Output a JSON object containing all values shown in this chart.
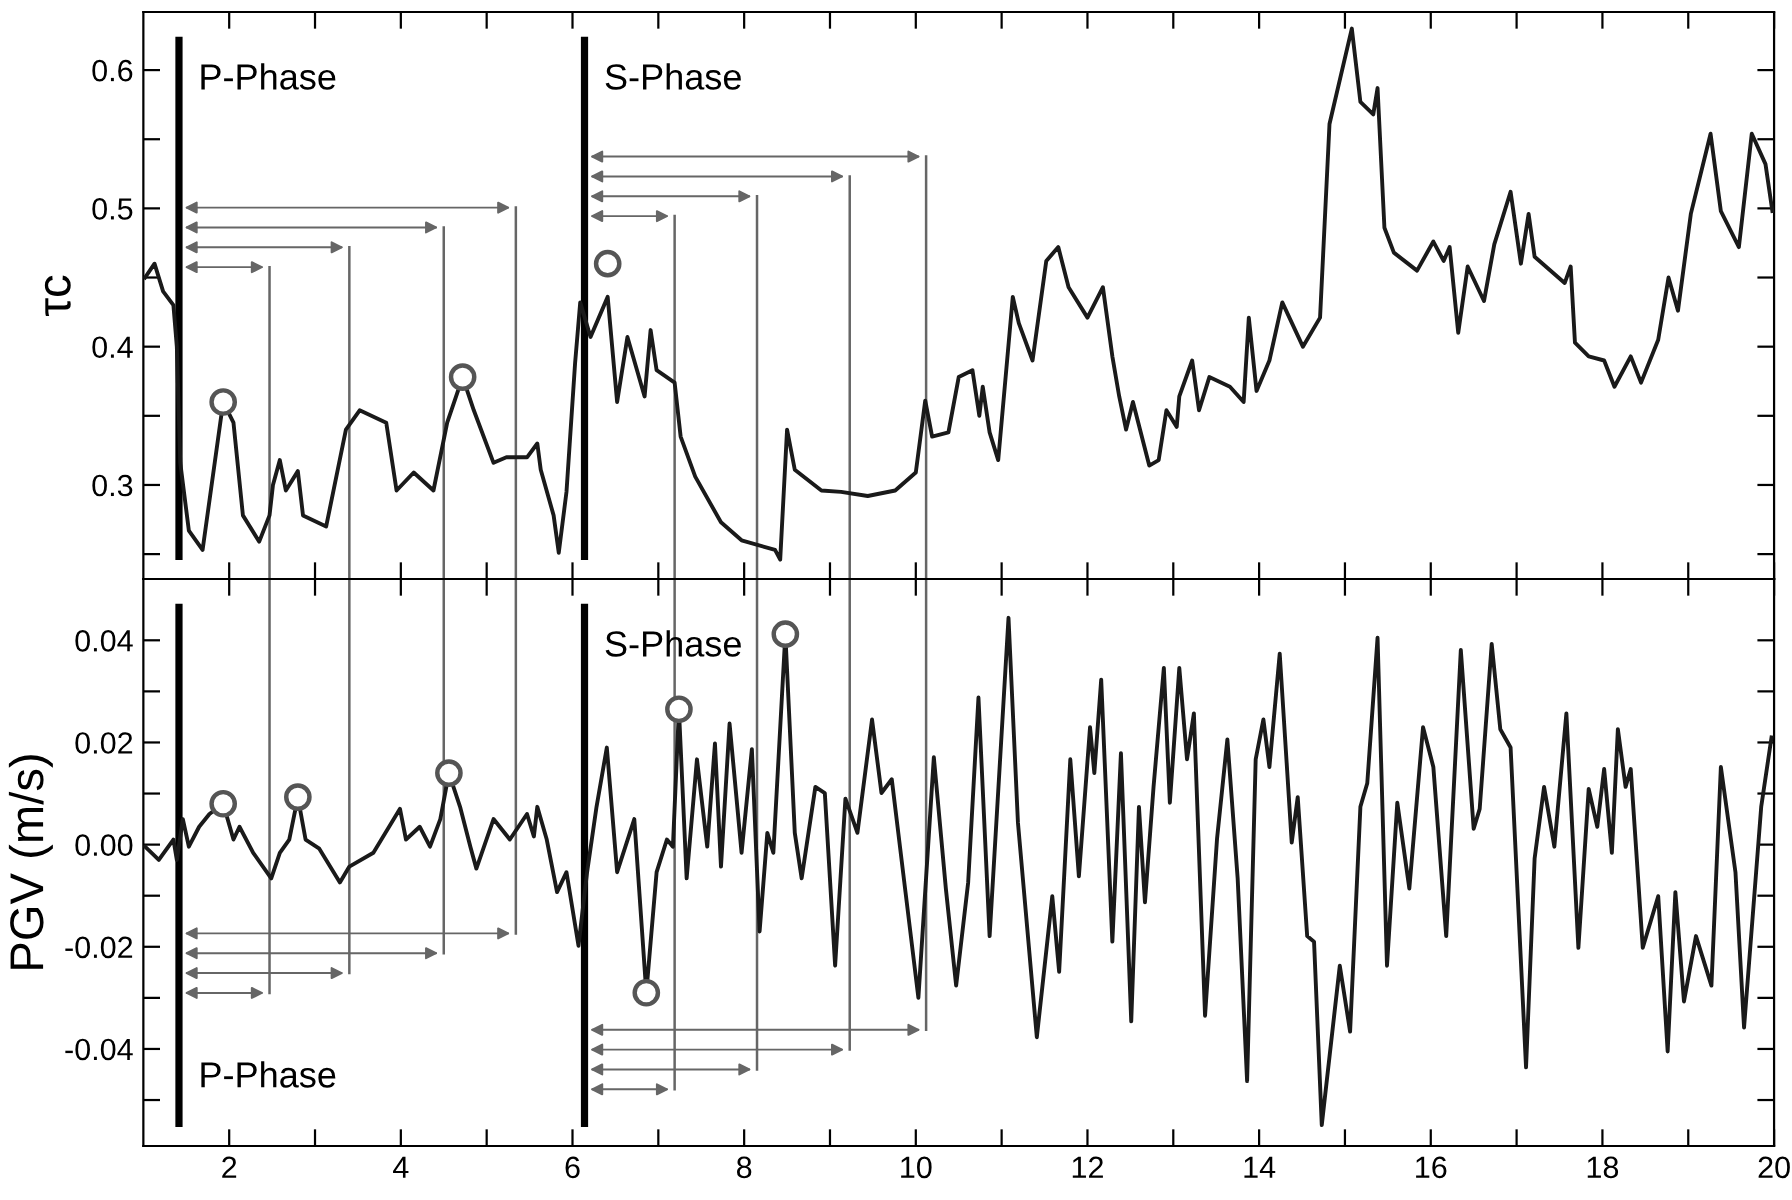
{
  "chart_data": [
    {
      "type": "line",
      "ylabel": "τc",
      "tick_labels": "y",
      "xlim": [
        1.0,
        20
      ],
      "ylim": [
        0.232,
        0.642
      ],
      "xticks": [
        {
          "value": 2,
          "label": null
        },
        {
          "value": 3,
          "label": null
        },
        {
          "value": 4,
          "label": null
        },
        {
          "value": 5,
          "label": null
        },
        {
          "value": 6,
          "label": null
        },
        {
          "value": 7,
          "label": null
        },
        {
          "value": 8,
          "label": null
        },
        {
          "value": 9,
          "label": null
        },
        {
          "value": 10,
          "label": null
        },
        {
          "value": 11,
          "label": null
        },
        {
          "value": 12,
          "label": null
        },
        {
          "value": 13,
          "label": null
        },
        {
          "value": 14,
          "label": null
        },
        {
          "value": 15,
          "label": null
        },
        {
          "value": 16,
          "label": null
        },
        {
          "value": 17,
          "label": null
        },
        {
          "value": 18,
          "label": null
        },
        {
          "value": 19,
          "label": null
        },
        {
          "value": 20,
          "label": null
        }
      ],
      "yticks": [
        {
          "value": 0.25,
          "label": null
        },
        0.3,
        {
          "value": 0.35,
          "label": null
        },
        0.4,
        {
          "value": 0.45,
          "label": null
        },
        0.5,
        {
          "value": 0.55,
          "label": null
        },
        0.6
      ],
      "ref_lines": [
        {
          "axis": "x",
          "value": 1.415,
          "color": "#000000",
          "label": "P-Phase"
        },
        {
          "axis": "x",
          "value": 2.47,
          "color": "#666666"
        },
        {
          "axis": "x",
          "value": 3.4,
          "color": "#666666"
        },
        {
          "axis": "x",
          "value": 4.5,
          "color": "#666666"
        },
        {
          "axis": "x",
          "value": 5.34,
          "color": "#666666"
        },
        {
          "axis": "x",
          "value": 6.14,
          "color": "#000000",
          "label": "S-Phase"
        },
        {
          "axis": "x",
          "value": 7.19,
          "color": "#666666"
        },
        {
          "axis": "x",
          "value": 8.15,
          "color": "#666666"
        },
        {
          "axis": "x",
          "value": 9.23,
          "color": "#666666"
        },
        {
          "axis": "x",
          "value": 10.12,
          "color": "#666666"
        }
      ],
      "series": [
        {
          "color": "#1a1a1a",
          "x": [
            1.02,
            1.13,
            1.23,
            1.35,
            1.39,
            1.43,
            1.53,
            1.69,
            1.93,
            2.05,
            2.16,
            2.35,
            2.47,
            2.51,
            2.59,
            2.66,
            2.8,
            2.86,
            3.13,
            3.36,
            3.52,
            3.83,
            3.95,
            4.15,
            4.38,
            4.54,
            4.72,
            4.85,
            5.08,
            5.23,
            5.47,
            5.59,
            5.63,
            5.78,
            5.84,
            5.93,
            6.03,
            6.09,
            6.21,
            6.41,
            6.52,
            6.64,
            6.84,
            6.91,
            6.98,
            7.19,
            7.26,
            7.43,
            7.73,
            7.97,
            8.36,
            8.42,
            8.5,
            8.59,
            8.9,
            9.13,
            9.44,
            9.76,
            10.0,
            10.11,
            10.19,
            10.38,
            10.5,
            10.66,
            10.74,
            10.78,
            10.86,
            10.96,
            11.13,
            11.2,
            11.36,
            11.52,
            11.66,
            11.78,
            12.0,
            12.18,
            12.29,
            12.37,
            12.45,
            12.53,
            12.72,
            12.83,
            12.92,
            13.04,
            13.07,
            13.22,
            13.3,
            13.42,
            13.66,
            13.82,
            13.88,
            13.97,
            14.12,
            14.27,
            14.51,
            14.71,
            14.82,
            15.08,
            15.18,
            15.33,
            15.38,
            15.46,
            15.57,
            15.84,
            16.03,
            16.15,
            16.22,
            16.32,
            16.43,
            16.62,
            16.74,
            16.93,
            17.05,
            17.14,
            17.21,
            17.56,
            17.63,
            17.68,
            17.84,
            18.02,
            18.14,
            18.33,
            18.45,
            18.65,
            18.77,
            18.88,
            19.03,
            19.26,
            19.38,
            19.59,
            19.74,
            19.9,
            19.98
          ],
          "values": [
            0.45,
            0.46,
            0.44,
            0.43,
            0.4,
            0.316,
            0.267,
            0.253,
            0.36,
            0.345,
            0.278,
            0.259,
            0.278,
            0.3,
            0.318,
            0.296,
            0.31,
            0.278,
            0.27,
            0.34,
            0.354,
            0.345,
            0.296,
            0.309,
            0.296,
            0.345,
            0.378,
            0.354,
            0.316,
            0.32,
            0.32,
            0.33,
            0.311,
            0.278,
            0.251,
            0.295,
            0.388,
            0.432,
            0.407,
            0.436,
            0.36,
            0.407,
            0.364,
            0.412,
            0.383,
            0.374,
            0.335,
            0.306,
            0.273,
            0.26,
            0.253,
            0.246,
            0.34,
            0.311,
            0.296,
            0.295,
            0.292,
            0.296,
            0.309,
            0.361,
            0.335,
            0.338,
            0.378,
            0.383,
            0.35,
            0.371,
            0.338,
            0.318,
            0.436,
            0.417,
            0.39,
            0.462,
            0.472,
            0.443,
            0.421,
            0.443,
            0.393,
            0.364,
            0.34,
            0.36,
            0.314,
            0.318,
            0.354,
            0.342,
            0.364,
            0.39,
            0.354,
            0.378,
            0.371,
            0.36,
            0.421,
            0.368,
            0.39,
            0.432,
            0.4,
            0.421,
            0.561,
            0.63,
            0.577,
            0.568,
            0.587,
            0.486,
            0.468,
            0.455,
            0.476,
            0.462,
            0.472,
            0.41,
            0.458,
            0.433,
            0.474,
            0.512,
            0.46,
            0.496,
            0.465,
            0.446,
            0.458,
            0.403,
            0.393,
            0.39,
            0.371,
            0.393,
            0.374,
            0.405,
            0.45,
            0.426,
            0.496,
            0.554,
            0.498,
            0.472,
            0.554,
            0.532,
            0.498
          ]
        },
        {
          "type": "scatter",
          "marker": "circle",
          "color": "#555555",
          "x": [
            1.93,
            4.72,
            6.41
          ],
          "values": [
            0.36,
            0.378,
            0.46
          ]
        }
      ]
    },
    {
      "type": "line",
      "ylabel": "PGV (m/s)",
      "xlim": [
        1.0,
        20
      ],
      "ylim": [
        -0.059,
        0.052
      ],
      "xticks": [
        2,
        {
          "value": 3,
          "label": null
        },
        4,
        {
          "value": 5,
          "label": null
        },
        6,
        {
          "value": 7,
          "label": null
        },
        8,
        {
          "value": 9,
          "label": null
        },
        10,
        {
          "value": 11,
          "label": null
        },
        12,
        {
          "value": 13,
          "label": null
        },
        14,
        {
          "value": 15,
          "label": null
        },
        16,
        {
          "value": 17,
          "label": null
        },
        18,
        {
          "value": 19,
          "label": null
        },
        20
      ],
      "yticks": [
        {
          "value": -0.05,
          "label": null
        },
        {
          "value": -0.04,
          "label": "-0.04"
        },
        {
          "value": -0.03,
          "label": null
        },
        {
          "value": -0.02,
          "label": "-0.02"
        },
        {
          "value": -0.01,
          "label": null
        },
        {
          "value": 0,
          "label": "0.00"
        },
        {
          "value": 0.01,
          "label": null
        },
        {
          "value": 0.02,
          "label": "0.02"
        },
        {
          "value": 0.03,
          "label": null
        },
        {
          "value": 0.04,
          "label": "0.04"
        }
      ],
      "ref_lines": [
        {
          "axis": "x",
          "value": 1.415,
          "color": "#000000",
          "label": "P-Phase"
        },
        {
          "axis": "x",
          "value": 2.47,
          "color": "#666666"
        },
        {
          "axis": "x",
          "value": 3.4,
          "color": "#666666"
        },
        {
          "axis": "x",
          "value": 4.5,
          "color": "#666666"
        },
        {
          "axis": "x",
          "value": 5.34,
          "color": "#666666"
        },
        {
          "axis": "x",
          "value": 6.14,
          "color": "#000000",
          "label": "S-Phase"
        },
        {
          "axis": "x",
          "value": 7.19,
          "color": "#666666"
        },
        {
          "axis": "x",
          "value": 8.15,
          "color": "#666666"
        },
        {
          "axis": "x",
          "value": 9.23,
          "color": "#666666"
        },
        {
          "axis": "x",
          "value": 10.12,
          "color": "#666666"
        }
      ],
      "series": [
        {
          "color": "#1a1a1a",
          "x": [
            1.02,
            1.18,
            1.35,
            1.39,
            1.46,
            1.53,
            1.65,
            1.77,
            1.93,
            2.05,
            2.12,
            2.28,
            2.49,
            2.59,
            2.7,
            2.8,
            2.89,
            3.05,
            3.29,
            3.4,
            3.68,
            3.99,
            4.06,
            4.22,
            4.34,
            4.46,
            4.56,
            4.69,
            4.81,
            4.88,
            5.08,
            5.27,
            5.47,
            5.55,
            5.59,
            5.7,
            5.82,
            5.93,
            6.07,
            6.17,
            6.28,
            6.4,
            6.52,
            6.72,
            6.86,
            6.98,
            7.1,
            7.17,
            7.24,
            7.33,
            7.45,
            7.57,
            7.66,
            7.73,
            7.83,
            7.97,
            8.09,
            8.18,
            8.27,
            8.34,
            8.48,
            8.59,
            8.67,
            8.83,
            8.94,
            9.06,
            9.18,
            9.32,
            9.49,
            9.6,
            9.72,
            9.88,
            10.03,
            10.21,
            10.35,
            10.47,
            10.61,
            10.73,
            10.86,
            11.08,
            11.19,
            11.41,
            11.59,
            11.67,
            11.8,
            11.9,
            12.03,
            12.08,
            12.16,
            12.29,
            12.39,
            12.51,
            12.6,
            12.67,
            12.77,
            12.89,
            12.96,
            13.07,
            13.16,
            13.24,
            13.37,
            13.51,
            13.63,
            13.75,
            13.86,
            13.96,
            14.05,
            14.12,
            14.24,
            14.38,
            14.45,
            14.56,
            14.64,
            14.73,
            14.94,
            15.06,
            15.18,
            15.26,
            15.38,
            15.49,
            15.61,
            15.75,
            15.91,
            16.03,
            16.18,
            16.35,
            16.5,
            16.57,
            16.71,
            16.81,
            16.93,
            17.11,
            17.21,
            17.32,
            17.44,
            17.58,
            17.72,
            17.84,
            17.94,
            18.02,
            18.11,
            18.18,
            18.27,
            18.33,
            18.47,
            18.65,
            18.76,
            18.85,
            18.95,
            19.09,
            19.27,
            19.38,
            19.55,
            19.65,
            19.85,
            19.97
          ],
          "values": [
            -0.0004,
            -0.003,
            0.001,
            -0.003,
            0.005,
            -0.0004,
            0.0035,
            0.006,
            0.008,
            0.001,
            0.0035,
            -0.0016,
            -0.0066,
            -0.0016,
            0.001,
            0.0093,
            0.001,
            -0.0008,
            -0.0074,
            -0.0043,
            -0.0016,
            0.007,
            0.001,
            0.0035,
            -0.0004,
            0.005,
            0.014,
            0.0074,
            -0.0004,
            -0.0047,
            0.005,
            0.001,
            0.006,
            0.0016,
            0.0074,
            0.001,
            -0.0093,
            -0.0054,
            -0.0198,
            -0.0054,
            0.0074,
            0.019,
            -0.0054,
            0.005,
            -0.029,
            -0.0054,
            0.001,
            -0.0004,
            0.0265,
            -0.0066,
            0.0167,
            -0.0004,
            0.0198,
            -0.0043,
            0.0237,
            -0.0016,
            0.0187,
            -0.017,
            0.0023,
            -0.0016,
            0.0412,
            0.0023,
            -0.0066,
            0.0113,
            0.0101,
            -0.0237,
            0.009,
            0.0023,
            0.0245,
            0.0101,
            0.0128,
            -0.0093,
            -0.03,
            0.0171,
            -0.0086,
            -0.0276,
            -0.0074,
            0.0288,
            -0.0179,
            0.0444,
            0.0043,
            -0.0377,
            -0.0101,
            -0.0249,
            0.0167,
            -0.0062,
            0.023,
            0.014,
            0.0323,
            -0.019,
            0.0179,
            -0.0346,
            0.0074,
            -0.0113,
            0.0113,
            0.0346,
            0.0082,
            0.0346,
            0.0167,
            0.0257,
            -0.0335,
            0.0012,
            0.0206,
            -0.0066,
            -0.0463,
            0.0167,
            0.0245,
            0.0152,
            0.0374,
            0.0004,
            0.0093,
            -0.0179,
            -0.019,
            -0.0549,
            -0.0237,
            -0.0366,
            0.0074,
            0.012,
            0.0405,
            -0.0237,
            0.0082,
            -0.0086,
            0.023,
            0.0152,
            -0.0179,
            0.0381,
            0.0031,
            0.007,
            0.0393,
            0.0226,
            0.019,
            -0.0436,
            -0.0027,
            0.0113,
            -0.0004,
            0.0257,
            -0.0202,
            0.0109,
            0.0035,
            0.0148,
            -0.0016,
            0.0226,
            0.0113,
            0.0148,
            -0.0202,
            -0.0101,
            -0.0405,
            -0.0093,
            -0.0307,
            -0.0179,
            -0.0276,
            0.0152,
            -0.0054,
            -0.0358,
            0.0074,
            0.021
          ]
        },
        {
          "type": "scatter",
          "marker": "circle",
          "color": "#555555",
          "x": [
            1.93,
            2.8,
            4.56,
            6.86,
            7.24,
            8.48
          ],
          "values": [
            0.008,
            0.0093,
            0.014,
            -0.029,
            0.0265,
            0.0412
          ]
        }
      ]
    }
  ]
}
